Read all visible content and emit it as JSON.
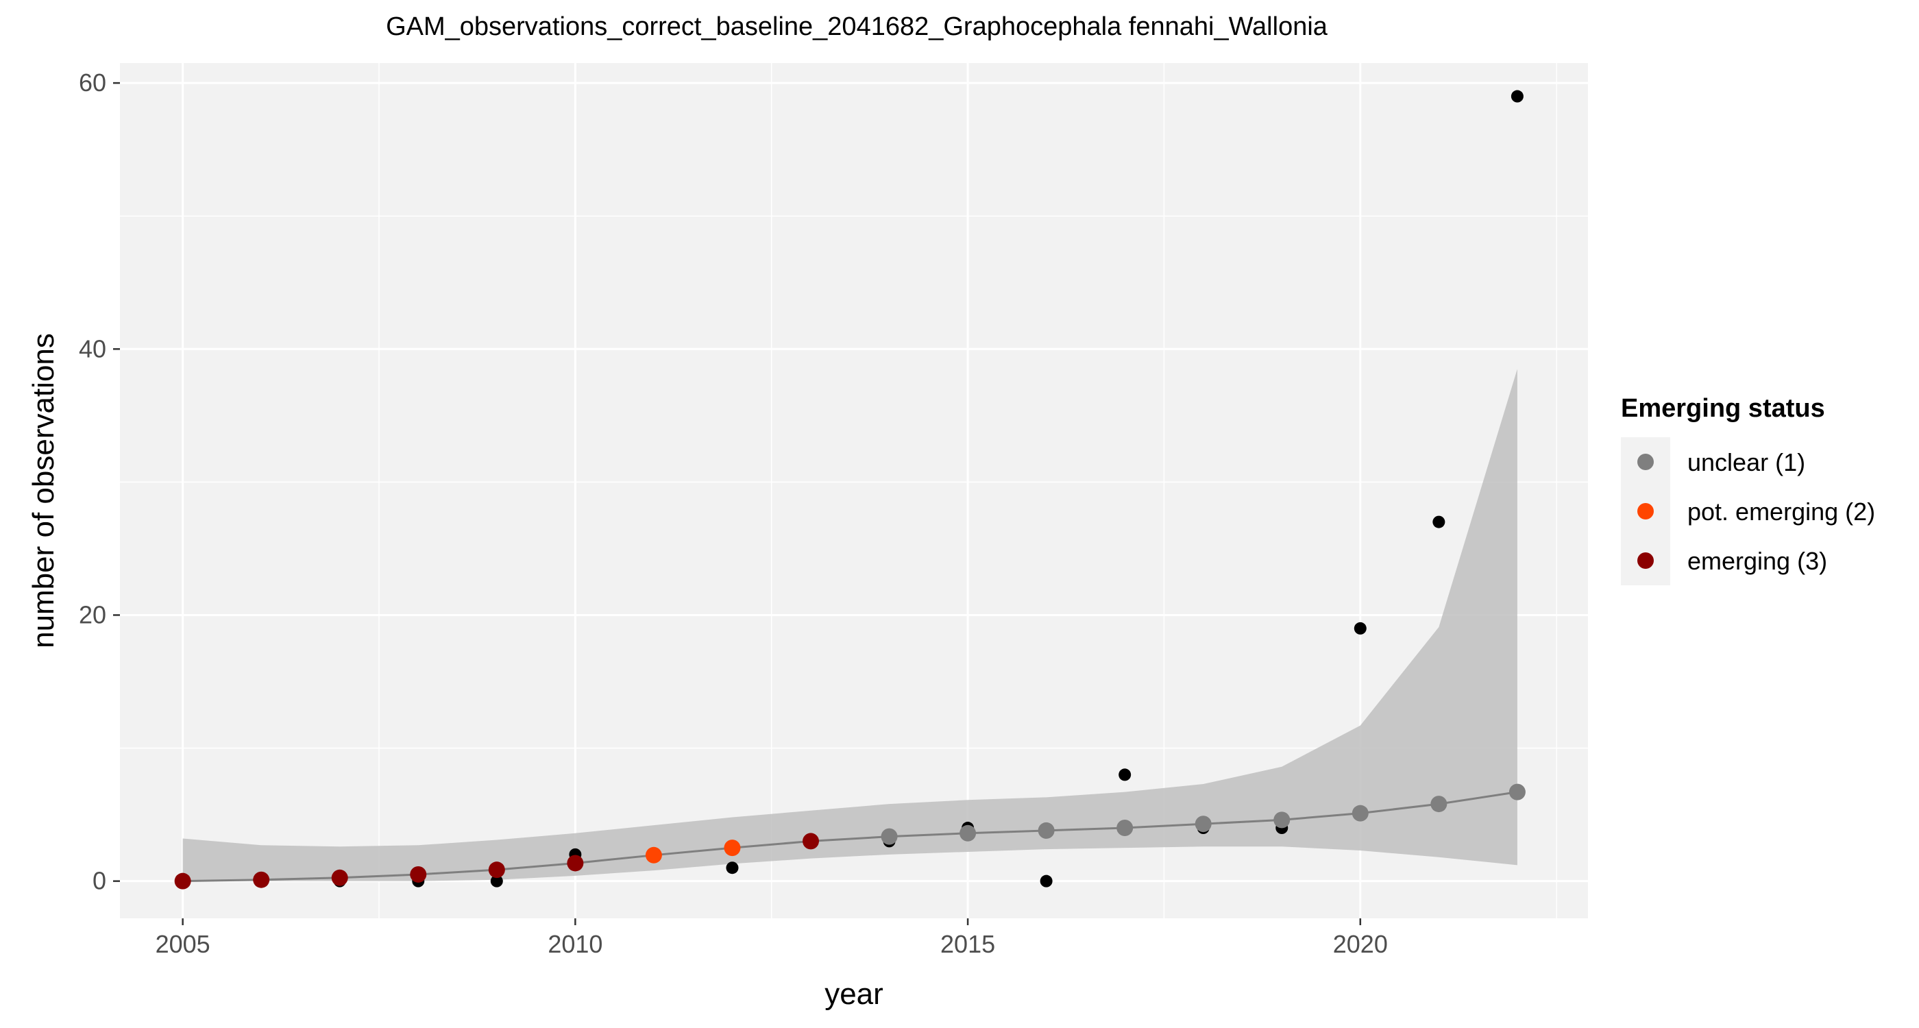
{
  "chart_data": {
    "type": "line",
    "title": "GAM_observations_correct_baseline_2041682_Graphocephala fennahi_Wallonia",
    "xlabel": "year",
    "ylabel": "number of observations",
    "xlim": [
      2004.2,
      2022.9
    ],
    "ylim": [
      -2.8,
      61.5
    ],
    "x_ticks": [
      2005,
      2010,
      2015,
      2020
    ],
    "y_ticks": [
      0,
      20,
      40,
      60
    ],
    "grid": true,
    "legend_position": "right",
    "legend": {
      "title": "Emerging status",
      "entries": [
        {
          "label": "unclear (1)",
          "color": "#7f7f7f"
        },
        {
          "label": "pot. emerging (2)",
          "color": "#ff4500"
        },
        {
          "label": "emerging (3)",
          "color": "#8b0000"
        }
      ]
    },
    "observations": {
      "color": "#000000",
      "x": [
        2005,
        2006,
        2007,
        2008,
        2009,
        2010,
        2011,
        2012,
        2013,
        2014,
        2015,
        2016,
        2017,
        2018,
        2019,
        2020,
        2021,
        2022
      ],
      "y": [
        0,
        0,
        0,
        0,
        0,
        2,
        2,
        1,
        3,
        3,
        4,
        0,
        8,
        4,
        4,
        19,
        27,
        59
      ]
    },
    "gam_fit": {
      "line_color": "#7f7f7f",
      "band_color": "#c0c0c0",
      "x": [
        2005,
        2006,
        2007,
        2008,
        2009,
        2010,
        2011,
        2012,
        2013,
        2014,
        2015,
        2016,
        2017,
        2018,
        2019,
        2020,
        2021,
        2022
      ],
      "y": [
        0.0,
        0.1,
        0.25,
        0.5,
        0.85,
        1.35,
        1.95,
        2.5,
        3.0,
        3.35,
        3.6,
        3.8,
        4.0,
        4.3,
        4.6,
        5.1,
        5.8,
        6.7
      ],
      "lower": [
        0.0,
        0.0,
        0.0,
        0.0,
        0.1,
        0.4,
        0.8,
        1.3,
        1.7,
        2.0,
        2.2,
        2.4,
        2.5,
        2.6,
        2.6,
        2.3,
        1.8,
        1.2
      ],
      "upper": [
        3.2,
        2.7,
        2.6,
        2.7,
        3.1,
        3.6,
        4.2,
        4.8,
        5.3,
        5.8,
        6.1,
        6.3,
        6.7,
        7.3,
        8.6,
        11.7,
        19.1,
        38.5
      ],
      "status": [
        "emerging (3)",
        "emerging (3)",
        "emerging (3)",
        "emerging (3)",
        "emerging (3)",
        "emerging (3)",
        "pot. emerging (2)",
        "pot. emerging (2)",
        "emerging (3)",
        "unclear (1)",
        "unclear (1)",
        "unclear (1)",
        "unclear (1)",
        "unclear (1)",
        "unclear (1)",
        "unclear (1)",
        "unclear (1)",
        "unclear (1)"
      ]
    }
  }
}
